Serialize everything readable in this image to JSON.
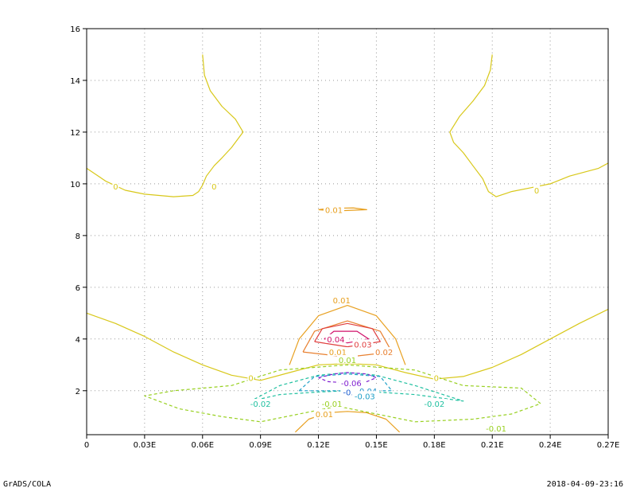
{
  "footer": {
    "left": "GrADS/COLA",
    "right": "2018-04-09-23:16"
  },
  "chart_data": {
    "type": "contour",
    "title": "",
    "xlabel": "",
    "ylabel": "",
    "xlim": [
      0,
      0.27
    ],
    "ylim": [
      0.3,
      16
    ],
    "x_ticks": [
      {
        "v": 0,
        "label": "0"
      },
      {
        "v": 0.03,
        "label": "0.03E"
      },
      {
        "v": 0.06,
        "label": "0.06E"
      },
      {
        "v": 0.09,
        "label": "0.09E"
      },
      {
        "v": 0.12,
        "label": "0.12E"
      },
      {
        "v": 0.15,
        "label": "0.15E"
      },
      {
        "v": 0.18,
        "label": "0.18E"
      },
      {
        "v": 0.21,
        "label": "0.21E"
      },
      {
        "v": 0.24,
        "label": "0.24E"
      },
      {
        "v": 0.27,
        "label": "0.27E"
      }
    ],
    "y_ticks": [
      {
        "v": 2,
        "label": "2"
      },
      {
        "v": 4,
        "label": "4"
      },
      {
        "v": 6,
        "label": "6"
      },
      {
        "v": 8,
        "label": "8"
      },
      {
        "v": 10,
        "label": "10"
      },
      {
        "v": 12,
        "label": "12"
      },
      {
        "v": 14,
        "label": "14"
      },
      {
        "v": 16,
        "label": "16"
      }
    ],
    "grid": true,
    "contours": [
      {
        "level": 0,
        "color": "#d8c81a",
        "dashed": false,
        "points": [
          [
            0.0,
            10.6
          ],
          [
            0.005,
            10.35
          ],
          [
            0.01,
            10.1
          ],
          [
            0.02,
            9.75
          ],
          [
            0.03,
            9.6
          ],
          [
            0.045,
            9.5
          ],
          [
            0.055,
            9.55
          ],
          [
            0.058,
            9.7
          ],
          [
            0.06,
            9.95
          ],
          [
            0.062,
            10.3
          ],
          [
            0.066,
            10.7
          ],
          [
            0.07,
            11.0
          ],
          [
            0.075,
            11.4
          ],
          [
            0.079,
            11.8
          ],
          [
            0.081,
            12.0
          ],
          [
            0.077,
            12.5
          ],
          [
            0.07,
            13.0
          ],
          [
            0.064,
            13.6
          ],
          [
            0.061,
            14.2
          ],
          [
            0.06,
            15.0
          ]
        ]
      },
      {
        "level": 0,
        "color": "#d8c81a",
        "dashed": false,
        "points": [
          [
            0.27,
            10.8
          ],
          [
            0.265,
            10.6
          ],
          [
            0.26,
            10.5
          ],
          [
            0.25,
            10.3
          ],
          [
            0.24,
            10.0
          ],
          [
            0.23,
            9.85
          ],
          [
            0.22,
            9.7
          ],
          [
            0.212,
            9.5
          ],
          [
            0.208,
            9.7
          ],
          [
            0.205,
            10.2
          ],
          [
            0.2,
            10.7
          ],
          [
            0.195,
            11.2
          ],
          [
            0.19,
            11.6
          ],
          [
            0.188,
            12.0
          ],
          [
            0.193,
            12.6
          ],
          [
            0.2,
            13.2
          ],
          [
            0.206,
            13.8
          ],
          [
            0.209,
            14.4
          ],
          [
            0.21,
            15.0
          ]
        ]
      },
      {
        "level": 0,
        "color": "#d8c81a",
        "dashed": false,
        "points": [
          [
            0.0,
            5.0
          ],
          [
            0.015,
            4.6
          ],
          [
            0.03,
            4.1
          ],
          [
            0.045,
            3.5
          ],
          [
            0.06,
            3.0
          ],
          [
            0.075,
            2.6
          ],
          [
            0.09,
            2.4
          ],
          [
            0.105,
            2.7
          ],
          [
            0.12,
            3.0
          ],
          [
            0.135,
            3.05
          ],
          [
            0.15,
            3.0
          ],
          [
            0.165,
            2.7
          ],
          [
            0.18,
            2.45
          ],
          [
            0.195,
            2.55
          ],
          [
            0.21,
            2.9
          ],
          [
            0.225,
            3.4
          ],
          [
            0.24,
            4.0
          ],
          [
            0.255,
            4.6
          ],
          [
            0.27,
            5.15
          ]
        ]
      },
      {
        "level": 0.01,
        "color": "#e8a020",
        "dashed": false,
        "points": [
          [
            0.105,
            3.0
          ],
          [
            0.11,
            4.0
          ],
          [
            0.12,
            4.9
          ],
          [
            0.135,
            5.3
          ],
          [
            0.15,
            4.9
          ],
          [
            0.16,
            4.0
          ],
          [
            0.165,
            3.0
          ]
        ]
      },
      {
        "level": 0.02,
        "color": "#e88030",
        "dashed": false,
        "points": [
          [
            0.112,
            3.5
          ],
          [
            0.118,
            4.3
          ],
          [
            0.135,
            4.7
          ],
          [
            0.152,
            4.3
          ],
          [
            0.158,
            3.5
          ],
          [
            0.135,
            3.3
          ],
          [
            0.112,
            3.5
          ]
        ]
      },
      {
        "level": 0.03,
        "color": "#e04040",
        "dashed": false,
        "points": [
          [
            0.118,
            3.9
          ],
          [
            0.122,
            4.4
          ],
          [
            0.135,
            4.6
          ],
          [
            0.148,
            4.4
          ],
          [
            0.152,
            3.9
          ],
          [
            0.135,
            3.7
          ],
          [
            0.118,
            3.9
          ]
        ]
      },
      {
        "level": 0.04,
        "color": "#d0106a",
        "dashed": false,
        "points": [
          [
            0.123,
            4.0
          ],
          [
            0.128,
            4.3
          ],
          [
            0.14,
            4.3
          ],
          [
            0.146,
            4.0
          ],
          [
            0.135,
            3.85
          ],
          [
            0.123,
            4.0
          ]
        ]
      },
      {
        "level": 0.01,
        "color": "#e8a020",
        "dashed": false,
        "points": [
          [
            0.108,
            0.4
          ],
          [
            0.115,
            0.9
          ],
          [
            0.125,
            1.15
          ],
          [
            0.135,
            1.2
          ],
          [
            0.145,
            1.15
          ],
          [
            0.155,
            0.9
          ],
          [
            0.162,
            0.4
          ]
        ]
      },
      {
        "level": -0.01,
        "color": "#98d020",
        "dashed": true,
        "points": [
          [
            0.045,
            2.0
          ],
          [
            0.03,
            1.8
          ],
          [
            0.048,
            1.3
          ],
          [
            0.07,
            1.0
          ],
          [
            0.09,
            0.8
          ],
          [
            0.11,
            1.1
          ],
          [
            0.13,
            1.4
          ],
          [
            0.15,
            1.1
          ],
          [
            0.17,
            0.8
          ],
          [
            0.2,
            0.9
          ],
          [
            0.22,
            1.1
          ],
          [
            0.235,
            1.5
          ],
          [
            0.225,
            2.1
          ],
          [
            0.195,
            2.2
          ],
          [
            0.17,
            2.8
          ],
          [
            0.135,
            3.0
          ],
          [
            0.1,
            2.8
          ],
          [
            0.075,
            2.2
          ],
          [
            0.045,
            2.0
          ]
        ]
      },
      {
        "level": -0.02,
        "color": "#20c0a0",
        "dashed": true,
        "points": [
          [
            0.085,
            1.6
          ],
          [
            0.1,
            1.85
          ],
          [
            0.12,
            1.95
          ],
          [
            0.135,
            2.0
          ],
          [
            0.15,
            1.95
          ],
          [
            0.17,
            1.85
          ],
          [
            0.195,
            1.6
          ],
          [
            0.17,
            2.2
          ],
          [
            0.15,
            2.6
          ],
          [
            0.135,
            2.7
          ],
          [
            0.12,
            2.6
          ],
          [
            0.1,
            2.2
          ],
          [
            0.085,
            1.6
          ]
        ]
      },
      {
        "level": -0.03,
        "color": "#20a0c8",
        "dashed": true,
        "points": [
          [
            0.11,
            2.0
          ],
          [
            0.135,
            2.0
          ],
          [
            0.158,
            2.0
          ],
          [
            0.152,
            2.55
          ],
          [
            0.135,
            2.65
          ],
          [
            0.118,
            2.55
          ],
          [
            0.11,
            2.0
          ]
        ]
      },
      {
        "level": -0.06,
        "color": "#8020d0",
        "dashed": true,
        "points": [
          [
            0.12,
            2.5
          ],
          [
            0.128,
            2.65
          ],
          [
            0.135,
            2.7
          ],
          [
            0.145,
            2.65
          ],
          [
            0.15,
            2.5
          ],
          [
            0.145,
            2.35
          ],
          [
            0.135,
            2.3
          ],
          [
            0.125,
            2.35
          ],
          [
            0.12,
            2.5
          ]
        ]
      },
      {
        "level": 0.01,
        "color": "#e8a020",
        "dashed": false,
        "points": [
          [
            0.12,
            9.0
          ],
          [
            0.128,
            8.95
          ],
          [
            0.135,
            8.97
          ],
          [
            0.145,
            9.0
          ],
          [
            0.138,
            9.07
          ],
          [
            0.125,
            9.05
          ],
          [
            0.12,
            9.0
          ]
        ]
      }
    ],
    "contour_labels": [
      {
        "x": 0.015,
        "y": 9.9,
        "text": "0",
        "color": "#d8c81a"
      },
      {
        "x": 0.066,
        "y": 9.9,
        "text": "0",
        "color": "#d8c81a"
      },
      {
        "x": 0.233,
        "y": 9.75,
        "text": "0",
        "color": "#d8c81a"
      },
      {
        "x": 0.085,
        "y": 2.5,
        "text": "0",
        "color": "#d8c81a"
      },
      {
        "x": 0.181,
        "y": 2.5,
        "text": "0",
        "color": "#d8c81a"
      },
      {
        "x": 0.128,
        "y": 9.0,
        "text": "0.01",
        "color": "#e8a020"
      },
      {
        "x": 0.132,
        "y": 5.5,
        "text": "0.01",
        "color": "#e8a020"
      },
      {
        "x": 0.129,
        "y": 4.0,
        "text": "0.04",
        "color": "#d0106a"
      },
      {
        "x": 0.143,
        "y": 3.8,
        "text": "0.03",
        "color": "#e04040"
      },
      {
        "x": 0.154,
        "y": 3.5,
        "text": "0.02",
        "color": "#e88030"
      },
      {
        "x": 0.13,
        "y": 3.5,
        "text": "0.01",
        "color": "#e8a020"
      },
      {
        "x": 0.135,
        "y": 3.2,
        "text": "0.01",
        "color": "#98d020"
      },
      {
        "x": 0.137,
        "y": 2.3,
        "text": "-0.06",
        "color": "#8020d0"
      },
      {
        "x": 0.138,
        "y": 1.95,
        "text": "-0.05",
        "color": "#2060d0"
      },
      {
        "x": 0.145,
        "y": 2.0,
        "text": "-0.04",
        "color": "#2090c8"
      },
      {
        "x": 0.144,
        "y": 1.8,
        "text": "-0.03",
        "color": "#20a0c8"
      },
      {
        "x": 0.09,
        "y": 1.5,
        "text": "-0.02",
        "color": "#20c0a0"
      },
      {
        "x": 0.18,
        "y": 1.5,
        "text": "-0.02",
        "color": "#20c0a0"
      },
      {
        "x": 0.127,
        "y": 1.5,
        "text": "-0.01",
        "color": "#98d020"
      },
      {
        "x": 0.123,
        "y": 1.1,
        "text": "0.01",
        "color": "#e8a020"
      },
      {
        "x": 0.212,
        "y": 0.55,
        "text": "-0.01",
        "color": "#98d020"
      }
    ]
  }
}
